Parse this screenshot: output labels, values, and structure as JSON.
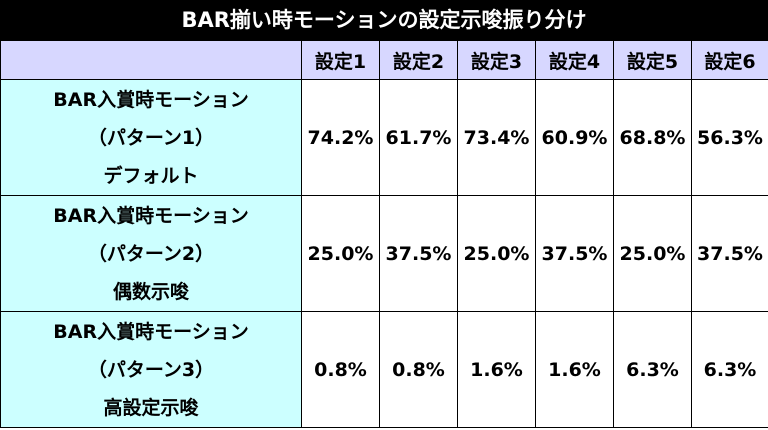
{
  "title": "BAR揃い時モーションの設定示唆振り分け",
  "table": {
    "columns": [
      "設定1",
      "設定2",
      "設定3",
      "設定4",
      "設定5",
      "設定6"
    ],
    "rows": [
      {
        "label_lines": [
          "BAR入賞時モーション",
          "（パターン1）",
          "デフォルト"
        ],
        "values": [
          "74.2%",
          "61.7%",
          "73.4%",
          "60.9%",
          "68.8%",
          "56.3%"
        ]
      },
      {
        "label_lines": [
          "BAR入賞時モーション",
          "（パターン2）",
          "偶数示唆"
        ],
        "values": [
          "25.0%",
          "37.5%",
          "25.0%",
          "37.5%",
          "25.0%",
          "37.5%"
        ]
      },
      {
        "label_lines": [
          "BAR入賞時モーション",
          "（パターン3）",
          "高設定示唆"
        ],
        "values": [
          "0.8%",
          "0.8%",
          "1.6%",
          "1.6%",
          "6.3%",
          "6.3%"
        ]
      }
    ]
  }
}
